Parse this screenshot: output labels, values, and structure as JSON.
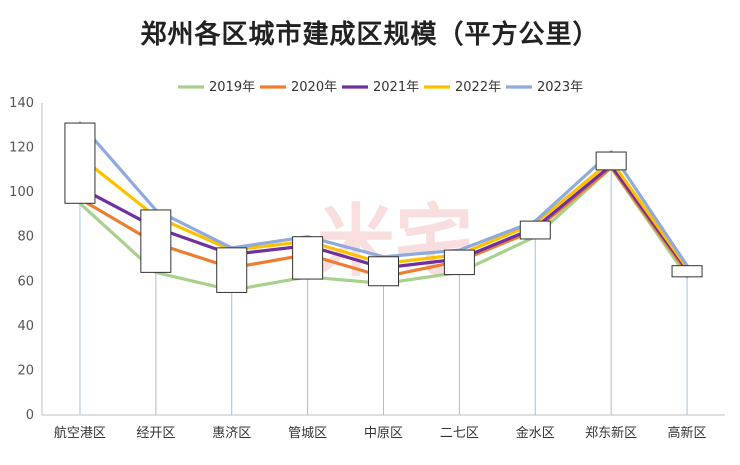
{
  "chart_data": {
    "type": "line",
    "title": "郑州各区城市建成区规模（平方公里）",
    "categories": [
      "航空港区",
      "经开区",
      "惠济区",
      "管城区",
      "中原区",
      "二七区",
      "金水区",
      "郑东新区",
      "高新区"
    ],
    "ylim": [
      0,
      140
    ],
    "yticks": [
      0,
      20,
      40,
      60,
      80,
      100,
      120,
      140
    ],
    "legend_position": "top",
    "grid": false,
    "series": [
      {
        "name": "2019年",
        "color": "#a9d18e",
        "values": [
          95,
          64,
          56,
          62,
          59,
          64,
          80,
          111,
          62
        ]
      },
      {
        "name": "2020年",
        "color": "#ed7d31",
        "values": [
          97,
          77,
          66,
          72,
          62,
          69,
          83,
          111,
          64
        ]
      },
      {
        "name": "2021年",
        "color": "#7030a0",
        "values": [
          102,
          84,
          72,
          76,
          66,
          70,
          84,
          112,
          65
        ]
      },
      {
        "name": "2022年",
        "color": "#ffc000",
        "values": [
          116,
          89,
          74,
          78,
          68,
          72,
          86,
          114,
          66
        ]
      },
      {
        "name": "2023年",
        "color": "#8faadc",
        "values": [
          131,
          92,
          75,
          80,
          71,
          74,
          87,
          118,
          67
        ]
      }
    ],
    "boxes": [
      {
        "low": 95,
        "high": 131
      },
      {
        "low": 64,
        "high": 92
      },
      {
        "low": 55,
        "high": 75
      },
      {
        "low": 61,
        "high": 80
      },
      {
        "low": 58,
        "high": 71
      },
      {
        "low": 63,
        "high": 74
      },
      {
        "low": 79,
        "high": 87
      },
      {
        "low": 110,
        "high": 118
      },
      {
        "low": 62,
        "high": 67
      }
    ],
    "watermark": "米宅"
  }
}
